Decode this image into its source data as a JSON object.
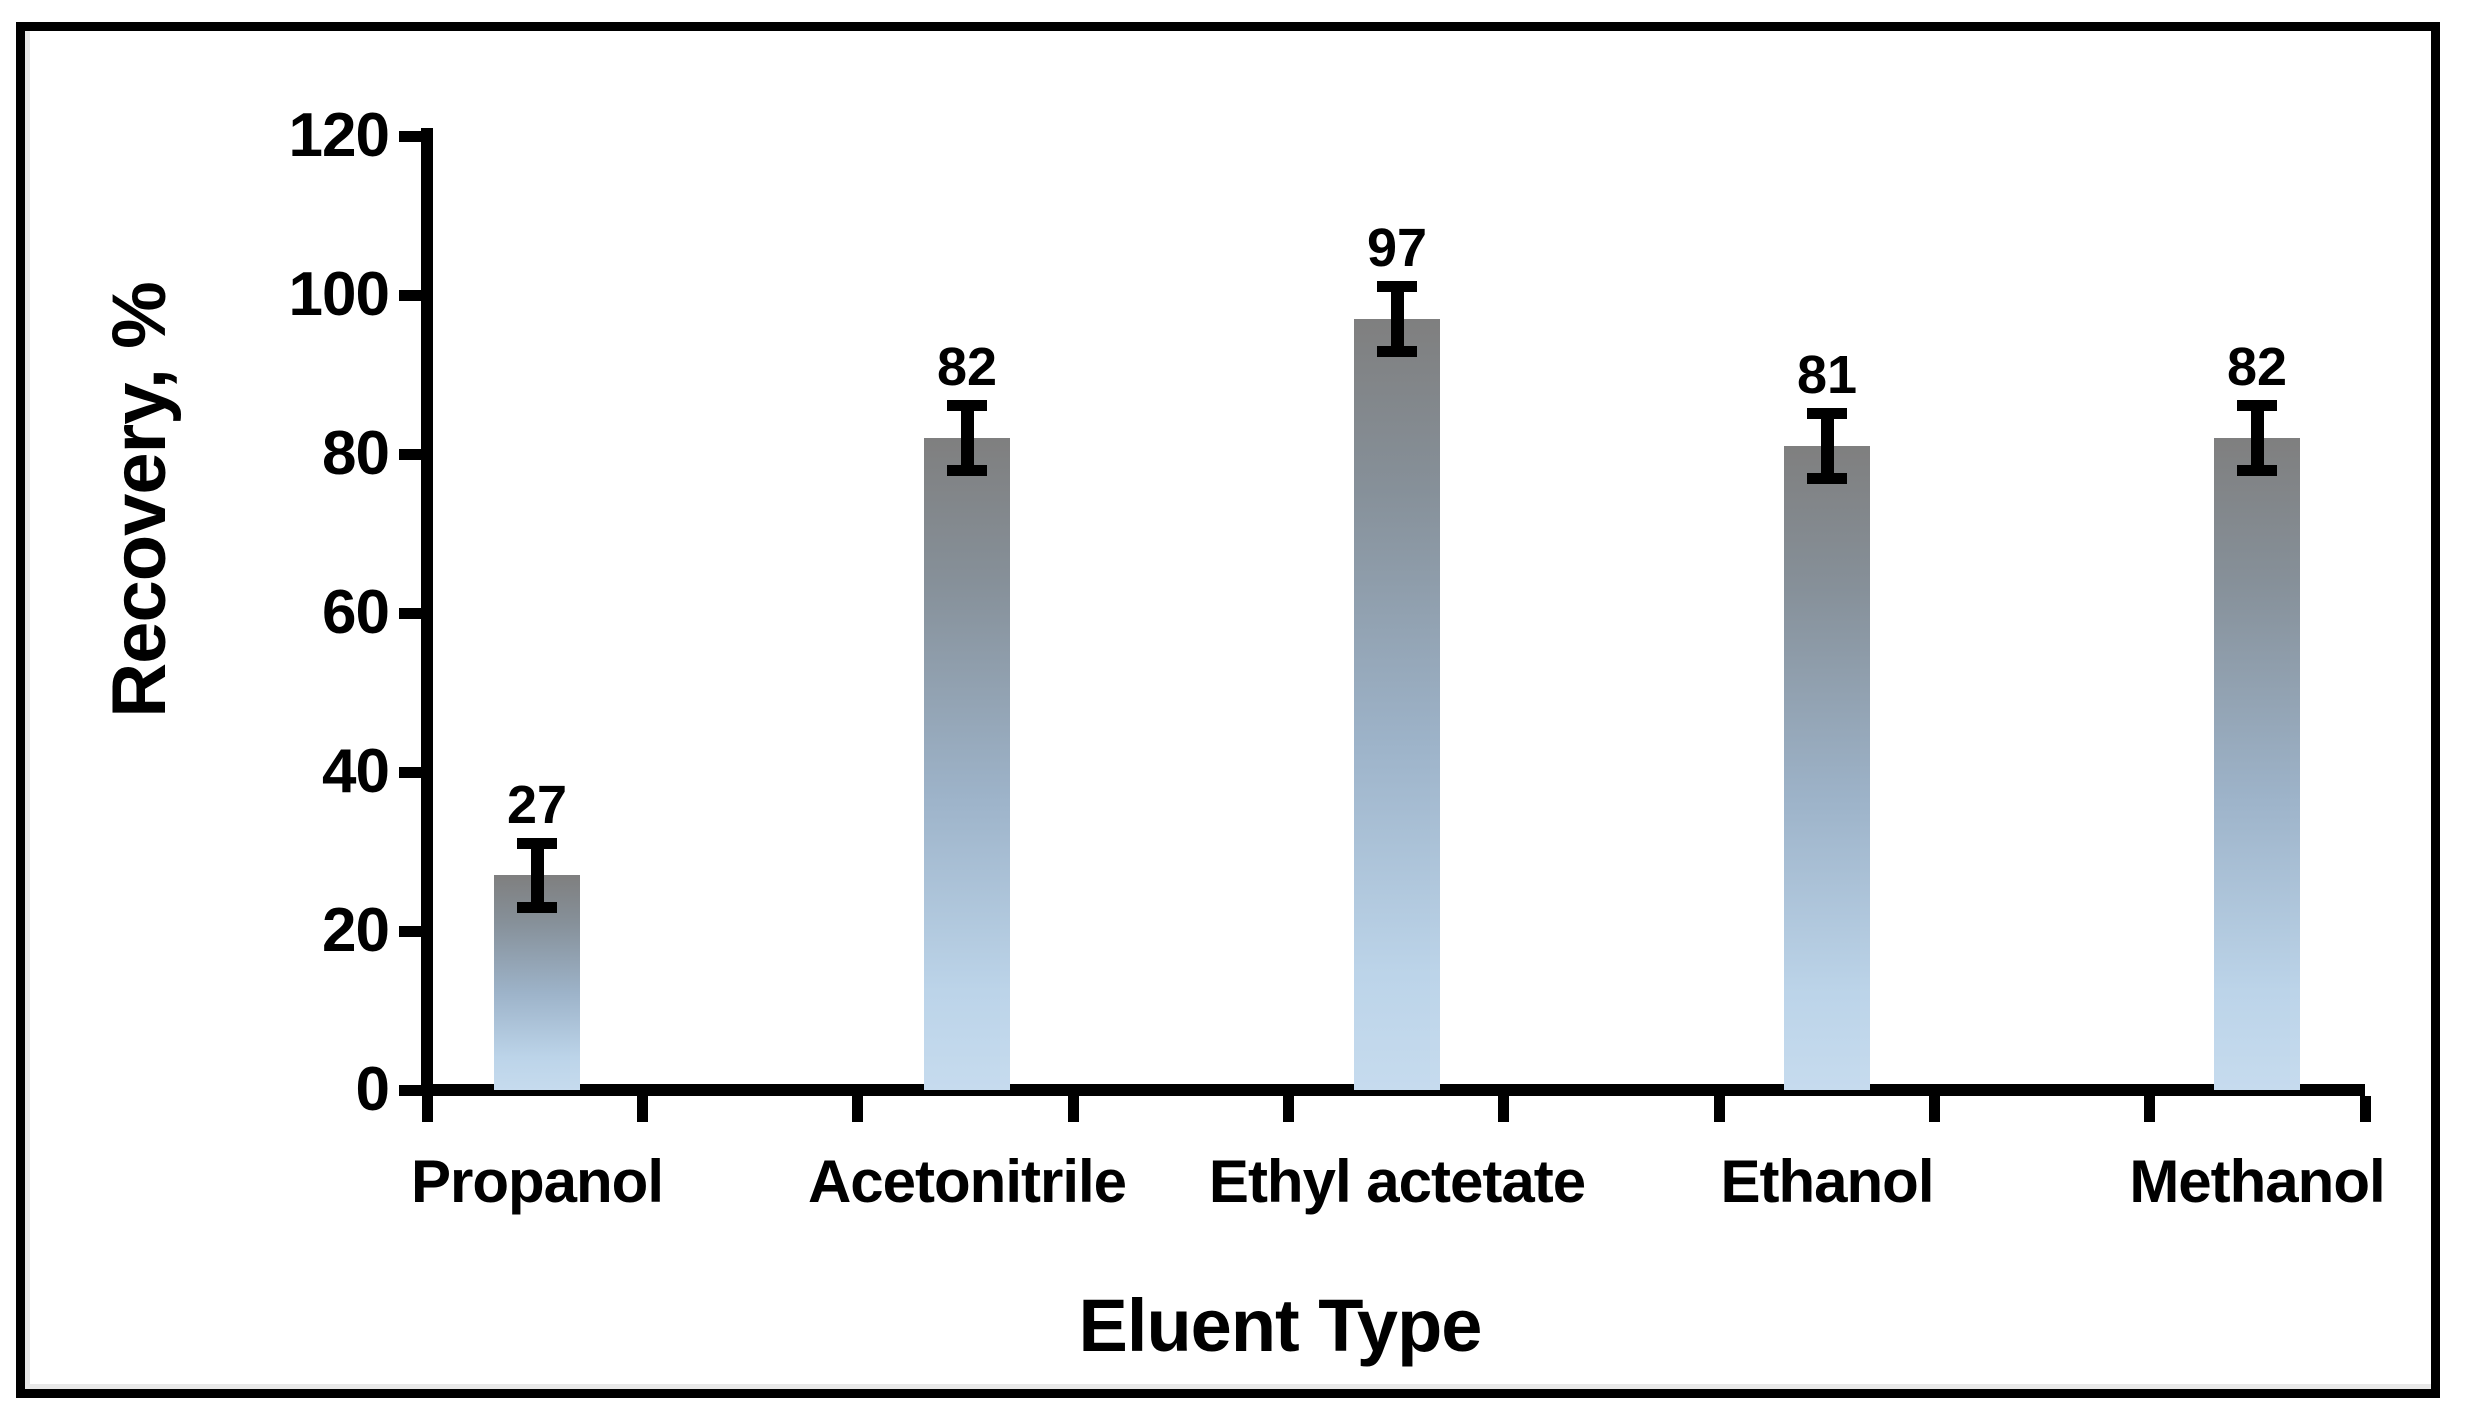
{
  "chart_data": {
    "type": "bar",
    "title": "",
    "categories": [
      "Propanol",
      "Acetonitrile",
      "Ethyl actetate",
      "Ethanol",
      "Methanol"
    ],
    "values": [
      27,
      82,
      97,
      81,
      82
    ],
    "data_labels": [
      "27",
      "82",
      "97",
      "81",
      "82"
    ],
    "error_bars_plus_minus": [
      4,
      4,
      4,
      4,
      4
    ],
    "xlabel": "Eluent Type",
    "ylabel": "Recovery, %",
    "ylim": [
      0,
      120
    ],
    "y_ticks": [
      0,
      20,
      40,
      60,
      80,
      100,
      120
    ],
    "x_axis_minor_tick_count": 10,
    "grid": "off",
    "legend": "none",
    "colors": {
      "bar_gradient_top": "#7f7f7f",
      "bar_gradient_bottom": "#c6dbee",
      "axis": "#000000",
      "text": "#000000",
      "frame_border": "#000000",
      "background": "#ffffff"
    }
  }
}
